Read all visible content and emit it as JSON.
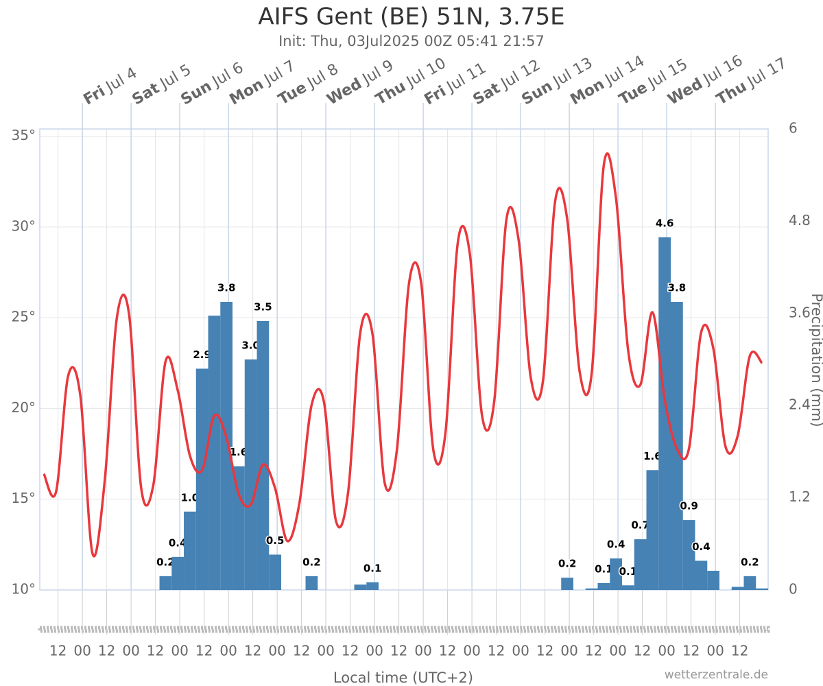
{
  "chart_data": {
    "type": "combo",
    "title": "AIFS Gent (BE) 51N, 3.75E",
    "subtitle": "Init: Thu, 03Jul2025 00Z 05:41 21:57",
    "x_label": "Local time (UTC+2)",
    "y2_label": "Precipitation (mm)",
    "credit": "wetterzentrale.de",
    "day_labels": [
      {
        "weekday": "Fri",
        "date": "Jul 4"
      },
      {
        "weekday": "Sat",
        "date": "Jul 5"
      },
      {
        "weekday": "Sun",
        "date": "Jul 6"
      },
      {
        "weekday": "Mon",
        "date": "Jul 7"
      },
      {
        "weekday": "Tue",
        "date": "Jul 8"
      },
      {
        "weekday": "Wed",
        "date": "Jul 9"
      },
      {
        "weekday": "Thu",
        "date": "Jul 10"
      },
      {
        "weekday": "Fri",
        "date": "Jul 11"
      },
      {
        "weekday": "Sat",
        "date": "Jul 12"
      },
      {
        "weekday": "Sun",
        "date": "Jul 13"
      },
      {
        "weekday": "Mon",
        "date": "Jul 14"
      },
      {
        "weekday": "Tue",
        "date": "Jul 15"
      },
      {
        "weekday": "Wed",
        "date": "Jul 16"
      },
      {
        "weekday": "Thu",
        "date": "Jul 17"
      }
    ],
    "xlim": [
      "Jul 3 03",
      "Jul 18 02"
    ],
    "xticks": [
      {
        "value": "Jul 3 12",
        "label": "12"
      },
      {
        "value": "Jul 4 00",
        "label": "00"
      },
      {
        "value": "Jul 4 12",
        "label": "12"
      },
      {
        "value": "Jul 5 00",
        "label": "00"
      },
      {
        "value": "Jul 5 12",
        "label": "12"
      },
      {
        "value": "Jul 6 00",
        "label": "00"
      },
      {
        "value": "Jul 6 12",
        "label": "12"
      },
      {
        "value": "Jul 7 00",
        "label": "00"
      },
      {
        "value": "Jul 7 12",
        "label": "12"
      },
      {
        "value": "Jul 8 00",
        "label": "00"
      },
      {
        "value": "Jul 8 12",
        "label": "12"
      },
      {
        "value": "Jul 9 00",
        "label": "00"
      },
      {
        "value": "Jul 9 12",
        "label": "12"
      },
      {
        "value": "Jul 10 00",
        "label": "00"
      },
      {
        "value": "Jul 10 12",
        "label": "12"
      },
      {
        "value": "Jul 11 00",
        "label": "00"
      },
      {
        "value": "Jul 11 12",
        "label": "12"
      },
      {
        "value": "Jul 12 00",
        "label": "00"
      },
      {
        "value": "Jul 12 12",
        "label": "12"
      },
      {
        "value": "Jul 13 00",
        "label": "00"
      },
      {
        "value": "Jul 13 12",
        "label": "12"
      },
      {
        "value": "Jul 14 00",
        "label": "00"
      },
      {
        "value": "Jul 14 12",
        "label": "12"
      },
      {
        "value": "Jul 15 00",
        "label": "00"
      },
      {
        "value": "Jul 15 12",
        "label": "12"
      },
      {
        "value": "Jul 16 00",
        "label": "00"
      },
      {
        "value": "Jul 16 12",
        "label": "12"
      },
      {
        "value": "Jul 17 00",
        "label": "00"
      },
      {
        "value": "Jul 17 12",
        "label": "12"
      }
    ],
    "ylim": [
      10,
      35.4
    ],
    "yticks": [
      {
        "value": 10,
        "label": "10°"
      },
      {
        "value": 15,
        "label": "15°"
      },
      {
        "value": 20,
        "label": "20°"
      },
      {
        "value": 25,
        "label": "25°"
      },
      {
        "value": 30,
        "label": "30°"
      },
      {
        "value": 35,
        "label": "35°"
      }
    ],
    "y2lim": [
      0,
      6
    ],
    "y2ticks": [
      0,
      1.2,
      2.4,
      3.6,
      4.8,
      6
    ],
    "grid": true,
    "series": [
      {
        "type": "line",
        "color": "#e8383d",
        "x": [
          "Jul 3 05",
          "Jul 3 11",
          "Jul 3 17",
          "Jul 3 23",
          "Jul 4 05",
          "Jul 4 11",
          "Jul 4 17",
          "Jul 4 23",
          "Jul 5 05",
          "Jul 5 11",
          "Jul 5 17",
          "Jul 5 23",
          "Jul 6 05",
          "Jul 6 11",
          "Jul 6 17",
          "Jul 6 23",
          "Jul 7 05",
          "Jul 7 11",
          "Jul 7 17",
          "Jul 7 23",
          "Jul 8 05",
          "Jul 8 11",
          "Jul 8 17",
          "Jul 8 23",
          "Jul 9 05",
          "Jul 9 11",
          "Jul 9 17",
          "Jul 9 23",
          "Jul 10 05",
          "Jul 10 11",
          "Jul 10 17",
          "Jul 10 23",
          "Jul 11 05",
          "Jul 11 11",
          "Jul 11 17",
          "Jul 11 23",
          "Jul 12 05",
          "Jul 12 11",
          "Jul 12 17",
          "Jul 12 23",
          "Jul 13 05",
          "Jul 13 11",
          "Jul 13 17",
          "Jul 13 23",
          "Jul 14 05",
          "Jul 14 11",
          "Jul 14 17",
          "Jul 14 23",
          "Jul 15 05",
          "Jul 15 11",
          "Jul 15 17",
          "Jul 15 23",
          "Jul 16 05",
          "Jul 16 11",
          "Jul 16 17",
          "Jul 16 23",
          "Jul 17 05",
          "Jul 17 11",
          "Jul 17 17",
          "Jul 17 23"
        ],
        "values": [
          16.4,
          15.4,
          21.8,
          20.7,
          12.0,
          16.0,
          25.0,
          25.2,
          15.6,
          15.8,
          22.6,
          21.0,
          17.4,
          16.6,
          19.6,
          18.4,
          15.3,
          14.7,
          16.9,
          15.6,
          12.7,
          14.8,
          20.2,
          20.4,
          13.8,
          15.4,
          24.2,
          24.1,
          15.9,
          17.7,
          26.9,
          26.9,
          17.7,
          18.7,
          29.1,
          28.5,
          19.6,
          20.4,
          30.4,
          29.3,
          21.7,
          21.5,
          31.4,
          30.4,
          22.1,
          21.9,
          33.4,
          31.6,
          23.2,
          21.3,
          25.3,
          20.5,
          17.8,
          17.8,
          24.2,
          23.3,
          17.9,
          18.5,
          22.9,
          22.5
        ]
      },
      {
        "type": "bar",
        "axis": "y2",
        "color": "#4682b4",
        "x": [
          "Jul 5 14",
          "Jul 5 20",
          "Jul 6 02",
          "Jul 6 08",
          "Jul 6 14",
          "Jul 6 20",
          "Jul 7 02",
          "Jul 7 08",
          "Jul 7 14",
          "Jul 7 20",
          "Jul 8 14",
          "Jul 9 14",
          "Jul 9 20",
          "Jul 13 20",
          "Jul 14 08",
          "Jul 14 14",
          "Jul 14 20",
          "Jul 15 02",
          "Jul 15 08",
          "Jul 15 14",
          "Jul 15 20",
          "Jul 16 02",
          "Jul 16 08",
          "Jul 16 14",
          "Jul 16 20",
          "Jul 17 08",
          "Jul 17 14",
          "Jul 17 20"
        ],
        "values": [
          0.18,
          0.43,
          1.02,
          2.88,
          3.57,
          3.75,
          1.61,
          3.0,
          3.5,
          0.46,
          0.18,
          0.07,
          0.1,
          0.16,
          0.02,
          0.09,
          0.41,
          0.06,
          0.66,
          1.56,
          4.59,
          3.75,
          0.91,
          0.38,
          0.25,
          0.04,
          0.18,
          0.02
        ],
        "value_labels": [
          "0.2",
          "0.4",
          "1.0",
          "2.9",
          null,
          "3.8",
          "1.6",
          "3.0",
          "3.5",
          "0.5",
          "0.2",
          null,
          "0.1",
          "0.2",
          null,
          "0.1",
          "0.4",
          "0.1",
          "0.7",
          "1.6",
          "4.6",
          "3.8",
          "0.9",
          "0.4",
          null,
          null,
          "0.2",
          null
        ]
      }
    ]
  }
}
